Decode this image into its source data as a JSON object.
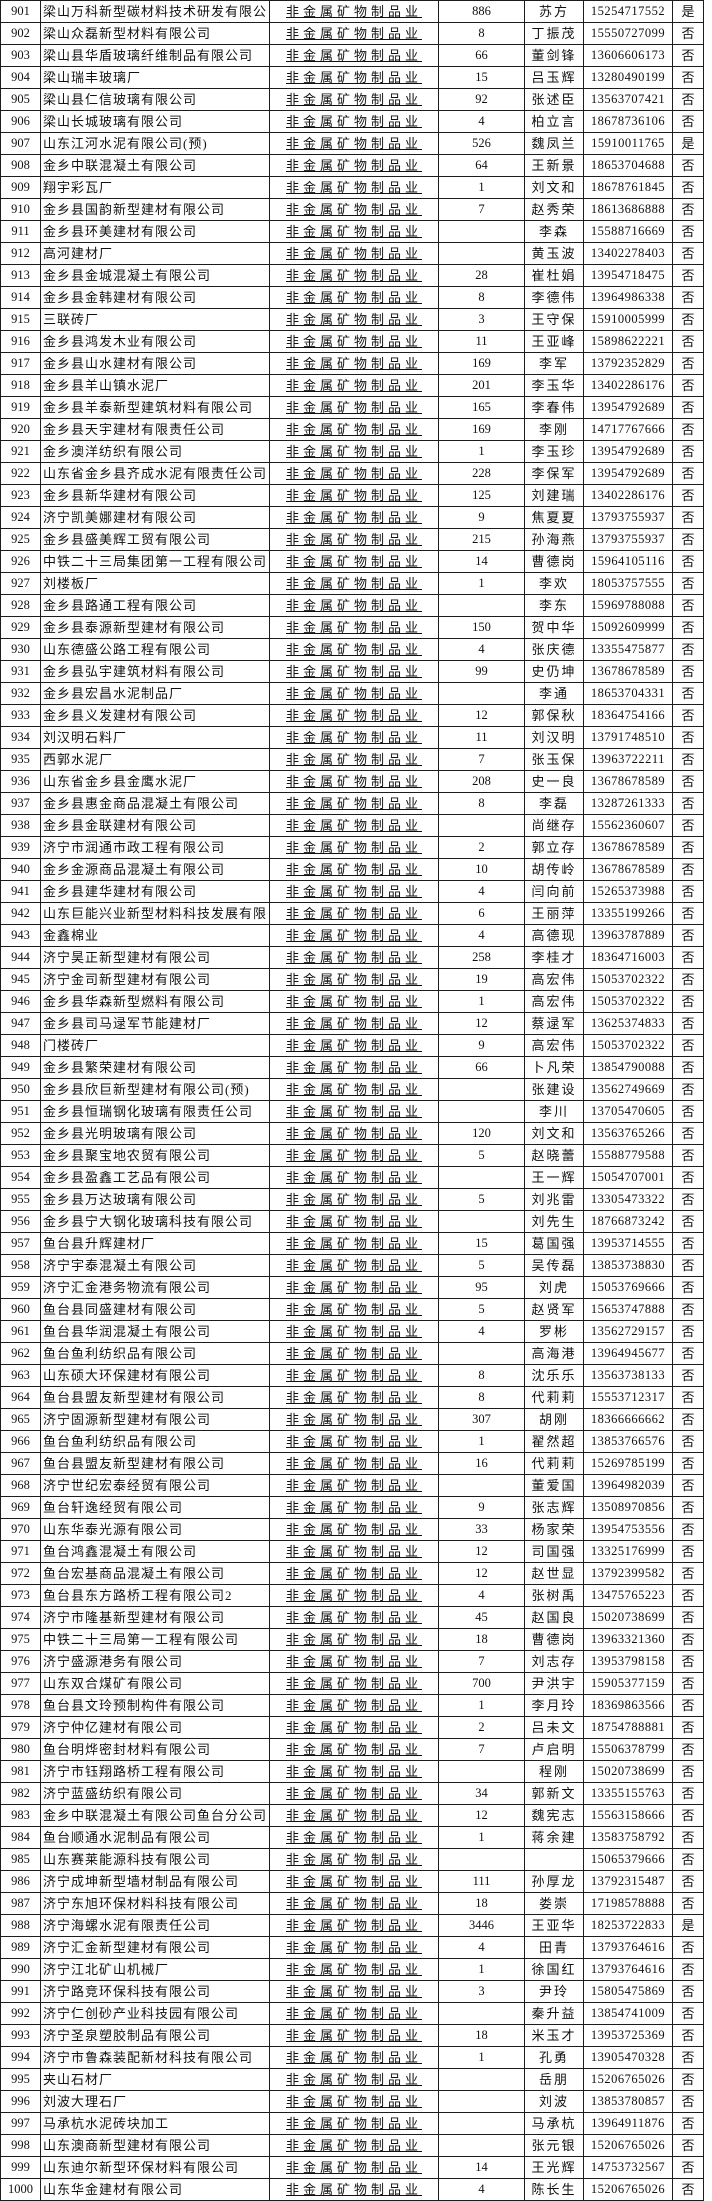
{
  "table": {
    "industry_value": "非金属矿物制品业",
    "flag_yes": "是",
    "flag_no": "否",
    "column_order": [
      "row_number",
      "company_name",
      "industry",
      "employee_count",
      "contact_name",
      "phone",
      "flag"
    ],
    "rows": [
      [
        "901",
        "梁山万科新型碳材料技术研发有限公",
        "886",
        "苏方",
        "15254717552",
        "是"
      ],
      [
        "902",
        "梁山众磊新型材料有限公司",
        "8",
        "丁振茂",
        "15550727099",
        "否"
      ],
      [
        "903",
        "梁山县华盾玻璃纤维制品有限公司",
        "66",
        "董剑锋",
        "13606606173",
        "否"
      ],
      [
        "904",
        "梁山瑞丰玻璃厂",
        "15",
        "吕玉辉",
        "13280490199",
        "否"
      ],
      [
        "905",
        "梁山县仁信玻璃有限公司",
        "92",
        "张述臣",
        "13563707421",
        "否"
      ],
      [
        "906",
        "梁山长城玻璃有限公司",
        "4",
        "柏立言",
        "18678736106",
        "否"
      ],
      [
        "907",
        "山东江河水泥有限公司(预)",
        "526",
        "魏凤兰",
        "15910011765",
        "是"
      ],
      [
        "908",
        "金乡中联混凝土有限公司",
        "64",
        "王新景",
        "18653704688",
        "否"
      ],
      [
        "909",
        "翔宇彩瓦厂",
        "1",
        "刘文和",
        "18678761845",
        "否"
      ],
      [
        "910",
        "金乡县国韵新型建材有限公司",
        "7",
        "赵秀荣",
        "18613686888",
        "否"
      ],
      [
        "911",
        "金乡县环美建材有限公司",
        "",
        "李森",
        "15588716669",
        "否"
      ],
      [
        "912",
        "高河建材厂",
        "",
        "黄玉波",
        "13402278403",
        "否"
      ],
      [
        "913",
        "金乡县金城混凝土有限公司",
        "28",
        "崔杜娟",
        "13954718475",
        "否"
      ],
      [
        "914",
        "金乡县金韩建材有限公司",
        "8",
        "李德伟",
        "13964986338",
        "否"
      ],
      [
        "915",
        "三联砖厂",
        "3",
        "王守保",
        "15910005999",
        "否"
      ],
      [
        "916",
        "金乡县鸿发木业有限公司",
        "11",
        "王亚峰",
        "15898622221",
        "否"
      ],
      [
        "917",
        "金乡县山水建材有限公司",
        "169",
        "李军",
        "13792352829",
        "否"
      ],
      [
        "918",
        "金乡县羊山镇水泥厂",
        "201",
        "李玉华",
        "13402286176",
        "否"
      ],
      [
        "919",
        "金乡县羊泰新型建筑材料有限公司",
        "165",
        "李春伟",
        "13954792689",
        "否"
      ],
      [
        "920",
        "金乡县天宇建材有限责任公司",
        "169",
        "李刚",
        "14717767666",
        "否"
      ],
      [
        "921",
        "金乡澳洋纺织有限公司",
        "1",
        "李玉珍",
        "13954792689",
        "否"
      ],
      [
        "922",
        "山东省金乡县齐成水泥有限责任公司",
        "228",
        "李保军",
        "13954792689",
        "否"
      ],
      [
        "923",
        "金乡县新华建材有限公司",
        "125",
        "刘建瑞",
        "13402286176",
        "否"
      ],
      [
        "924",
        "济宁凯美娜建材有限公司",
        "9",
        "焦夏夏",
        "13793755937",
        "否"
      ],
      [
        "925",
        "金乡县盛美辉工贸有限公司",
        "215",
        "孙海燕",
        "13793755937",
        "否"
      ],
      [
        "926",
        "中铁二十三局集团第一工程有限公司",
        "14",
        "曹德岗",
        "15964105116",
        "否"
      ],
      [
        "927",
        "刘楼板厂",
        "1",
        "李欢",
        "18053757555",
        "否"
      ],
      [
        "928",
        "金乡县路通工程有限公司",
        "",
        "李东",
        "15969788088",
        "否"
      ],
      [
        "929",
        "金乡县泰源新型建材有限公司",
        "150",
        "贺中华",
        "15092609999",
        "否"
      ],
      [
        "930",
        "山东德盛公路工程有限公司",
        "4",
        "张庆德",
        "13355475877",
        "否"
      ],
      [
        "931",
        "金乡县弘宇建筑材料有限公司",
        "99",
        "史仍坤",
        "13678678589",
        "否"
      ],
      [
        "932",
        "金乡县宏昌水泥制品厂",
        "",
        "李通",
        "18653704331",
        "否"
      ],
      [
        "933",
        "金乡县义发建材有限公司",
        "12",
        "郭保秋",
        "18364754166",
        "否"
      ],
      [
        "934",
        "刘汉明石料厂",
        "11",
        "刘汉明",
        "13791748510",
        "否"
      ],
      [
        "935",
        "西郭水泥厂",
        "7",
        "张玉保",
        "13963722211",
        "否"
      ],
      [
        "936",
        "山东省金乡县金鹰水泥厂",
        "208",
        "史一良",
        "13678678589",
        "否"
      ],
      [
        "937",
        "金乡县惠金商品混凝土有限公司",
        "8",
        "李磊",
        "13287261333",
        "否"
      ],
      [
        "938",
        "金乡县金联建材有限公司",
        "",
        "尚继存",
        "15562360607",
        "否"
      ],
      [
        "939",
        "济宁市润通市政工程有限公司",
        "2",
        "郭立存",
        "13678678589",
        "否"
      ],
      [
        "940",
        "金乡金源商品混凝土有限公司",
        "10",
        "胡传岭",
        "13678678589",
        "否"
      ],
      [
        "941",
        "金乡县建华建材有限公司",
        "4",
        "闫向前",
        "15265373988",
        "否"
      ],
      [
        "942",
        "山东巨能兴业新型材料科技发展有限",
        "6",
        "王丽萍",
        "13355199266",
        "否"
      ],
      [
        "943",
        "金鑫棉业",
        "4",
        "高德现",
        "13963787889",
        "否"
      ],
      [
        "944",
        "济宁昊正新型建材有限公司",
        "258",
        "李桂才",
        "18364716003",
        "否"
      ],
      [
        "945",
        "济宁金司新型建材有限公司",
        "19",
        "高宏伟",
        "15053702322",
        "否"
      ],
      [
        "946",
        "金乡县华森新型燃料有限公司",
        "1",
        "高宏伟",
        "15053702322",
        "否"
      ],
      [
        "947",
        "金乡县司马逯军节能建材厂",
        "12",
        "蔡逯军",
        "13625374833",
        "否"
      ],
      [
        "948",
        "门楼砖厂",
        "9",
        "高宏伟",
        "15053702322",
        "否"
      ],
      [
        "949",
        "金乡县繁荣建材有限公司",
        "66",
        "卜凡荣",
        "13854790088",
        "否"
      ],
      [
        "950",
        "金乡县欣巨新型建材有限公司(预)",
        "",
        "张建设",
        "13562749669",
        "否"
      ],
      [
        "951",
        "金乡县恒瑞钢化玻璃有限责任公司",
        "",
        "李川",
        "13705470605",
        "否"
      ],
      [
        "952",
        "金乡县光明玻璃有限公司",
        "120",
        "刘文和",
        "13563765266",
        "否"
      ],
      [
        "953",
        "金乡县聚宝地农贸有限公司",
        "5",
        "赵晓蕾",
        "15588779588",
        "否"
      ],
      [
        "954",
        "金乡县盈鑫工艺品有限公司",
        "",
        "王一辉",
        "15054707001",
        "否"
      ],
      [
        "955",
        "金乡县万达玻璃有限公司",
        "5",
        "刘兆雷",
        "13305473322",
        "否"
      ],
      [
        "956",
        "金乡县宁大钢化玻璃科技有限公司",
        "",
        "刘先生",
        "18766873242",
        "否"
      ],
      [
        "957",
        "鱼台县升辉建材厂",
        "15",
        "葛国强",
        "13953714555",
        "否"
      ],
      [
        "958",
        "济宁宇泰混凝土有限公司",
        "5",
        "吴传磊",
        "13853738830",
        "否"
      ],
      [
        "959",
        "济宁汇金港务物流有限公司",
        "95",
        "刘虎",
        "15053769666",
        "否"
      ],
      [
        "960",
        "鱼台县同盛建材有限公司",
        "5",
        "赵贤军",
        "15653747888",
        "否"
      ],
      [
        "961",
        "鱼台县华润混凝土有限公司",
        "4",
        "罗彬",
        "13562729157",
        "否"
      ],
      [
        "962",
        "鱼台鱼利纺织品有限公司",
        "",
        "高海港",
        "13964945677",
        "否"
      ],
      [
        "963",
        "山东硕大环保建材有限公司",
        "8",
        "沈乐乐",
        "13563738133",
        "否"
      ],
      [
        "964",
        "鱼台县盟友新型建材有限公司",
        "8",
        "代莉莉",
        "15553712317",
        "否"
      ],
      [
        "965",
        "济宁固源新型建材有限公司",
        "307",
        "胡刚",
        "18366666662",
        "否"
      ],
      [
        "966",
        "鱼台鱼利纺织品有限公司",
        "1",
        "翟然超",
        "13853766576",
        "否"
      ],
      [
        "967",
        "鱼台县盟友新型建材有限公司",
        "16",
        "代莉莉",
        "15269785199",
        "否"
      ],
      [
        "968",
        "济宁世纪宏泰经贸有限公司",
        "",
        "董爱国",
        "13964982039",
        "否"
      ],
      [
        "969",
        "鱼台轩逸经贸有限公司",
        "9",
        "张志辉",
        "13508970856",
        "否"
      ],
      [
        "970",
        "山东华泰光源有限公司",
        "33",
        "杨家荣",
        "13954753556",
        "否"
      ],
      [
        "971",
        "鱼台鸿鑫混凝土有限公司",
        "12",
        "司国强",
        "13325176999",
        "否"
      ],
      [
        "972",
        "鱼台宏基商品混凝土有限公司",
        "12",
        "赵世显",
        "13792399582",
        "否"
      ],
      [
        "973",
        "鱼台县东方路桥工程有限公司2",
        "4",
        "张树禹",
        "13475765223",
        "否"
      ],
      [
        "974",
        "济宁市隆基新型建材有限公司",
        "45",
        "赵国良",
        "15020738699",
        "否"
      ],
      [
        "975",
        "中铁二十三局第一工程有限公司",
        "18",
        "曹德岗",
        "13963321360",
        "否"
      ],
      [
        "976",
        "济宁盛源港务有限公司",
        "7",
        "刘志存",
        "13953798158",
        "否"
      ],
      [
        "977",
        "山东双合煤矿有限公司",
        "700",
        "尹洪宇",
        "15905377159",
        "否"
      ],
      [
        "978",
        "鱼台县文玲预制构件有限公司",
        "1",
        "李月玲",
        "18369863566",
        "否"
      ],
      [
        "979",
        "济宁仲亿建材有限公司",
        "2",
        "吕未文",
        "18754788881",
        "否"
      ],
      [
        "980",
        "鱼台明烨密封材料有限公司",
        "7",
        "卢启明",
        "15506378799",
        "否"
      ],
      [
        "981",
        "济宁市钰翔路桥工程有限公司",
        "",
        "程刚",
        "15020738699",
        "否"
      ],
      [
        "982",
        "济宁蓝盛纺织有限公司",
        "34",
        "郭新文",
        "13355155763",
        "否"
      ],
      [
        "983",
        "金乡中联混凝土有限公司鱼台分公司",
        "12",
        "魏宪志",
        "15563158666",
        "否"
      ],
      [
        "984",
        "鱼台顺通水泥制品有限公司",
        "1",
        "蒋余建",
        "13583758792",
        "否"
      ],
      [
        "985",
        "山东赛莱能源科技有限公司",
        "",
        "",
        "15065379666",
        "否"
      ],
      [
        "986",
        "济宁成坤新型墙材制品有限公司",
        "111",
        "孙厚龙",
        "13792315487",
        "否"
      ],
      [
        "987",
        "济宁东旭环保材料科技有限公司",
        "18",
        "娄崇",
        "17198578888",
        "否"
      ],
      [
        "988",
        "济宁海螺水泥有限责任公司",
        "3446",
        "王亚华",
        "18253722833",
        "是"
      ],
      [
        "989",
        "济宁汇金新型建材有限公司",
        "4",
        "田青",
        "13793764616",
        "否"
      ],
      [
        "990",
        "济宁江北矿山机械厂",
        "1",
        "徐国红",
        "13793764616",
        "否"
      ],
      [
        "991",
        "济宁路竞环保科技有限公司",
        "3",
        "尹玲",
        "15805475869",
        "否"
      ],
      [
        "992",
        "济宁仁创砂产业科技园有限公司",
        "",
        "秦升益",
        "13854741009",
        "否"
      ],
      [
        "993",
        "济宁圣泉塑胶制品有限公司",
        "18",
        "米玉才",
        "13953725369",
        "否"
      ],
      [
        "994",
        "济宁市鲁森装配新材科技有限公司",
        "1",
        "孔勇",
        "13905470328",
        "否"
      ],
      [
        "995",
        "夹山石材厂",
        "",
        "岳朋",
        "15206765026",
        "否"
      ],
      [
        "996",
        "刘波大理石厂",
        "",
        "刘波",
        "13853780857",
        "否"
      ],
      [
        "997",
        "马承杭水泥砖块加工",
        "",
        "马承杭",
        "13964911876",
        "否"
      ],
      [
        "998",
        "山东澳商新型建材有限公司",
        "",
        "张元银",
        "15206765026",
        "否"
      ],
      [
        "999",
        "山东迪尔新型环保材料有限公司",
        "14",
        "王光辉",
        "14753732567",
        "否"
      ],
      [
        "1000",
        "山东华金建材有限公司",
        "4",
        "陈长生",
        "15206765026",
        "否"
      ]
    ]
  }
}
